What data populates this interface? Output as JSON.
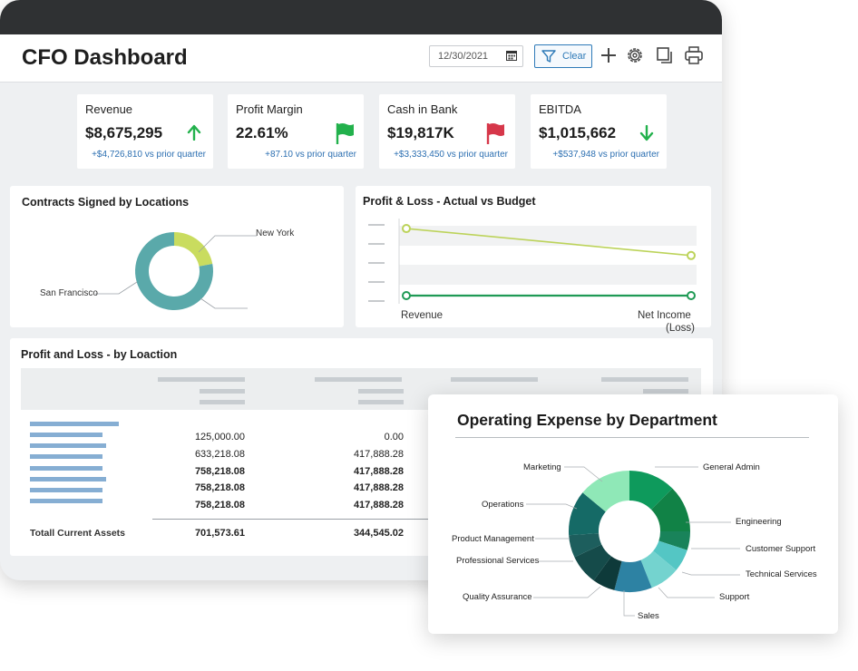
{
  "header": {
    "title": "CFO Dashboard",
    "date": "12/30/2021",
    "clear_label": "Clear"
  },
  "kpis": [
    {
      "label": "Revenue",
      "value": "$8,675,295",
      "delta": "+$4,726,810 vs prior quarter",
      "indicator": "arrow-up",
      "color": "#22b14c"
    },
    {
      "label": "Profit Margin",
      "value": "22.61%",
      "delta": "+87.10 vs prior quarter",
      "indicator": "flag",
      "color": "#22b14c"
    },
    {
      "label": "Cash in Bank",
      "value": "$19,817K",
      "delta": "+$3,333,450 vs prior quarter",
      "indicator": "flag",
      "color": "#d6374a"
    },
    {
      "label": "EBITDA",
      "value": "$1,015,662",
      "delta": "+$537,948 vs prior quarter",
      "indicator": "arrow-down",
      "color": "#22b14c"
    }
  ],
  "contracts": {
    "title": "Contracts Signed by Locations",
    "chart_data": {
      "type": "pie",
      "series": [
        {
          "name": "New York",
          "value": 0.22,
          "color": "#c9dc5f"
        },
        {
          "name": "San Francisco",
          "value": 0.78,
          "color": "#5aa9aa"
        }
      ]
    }
  },
  "pnl_chart": {
    "title": "Profit & Loss - Actual vs Budget",
    "chart_data": {
      "type": "line",
      "categories": [
        "Revenue",
        "Net Income (Loss)"
      ],
      "series": [
        {
          "values": [
            0.87,
            0.52
          ],
          "color": "#bcd35a"
        },
        {
          "values": [
            0.0,
            0.0
          ],
          "color": "#1f9a55"
        }
      ]
    },
    "x_labels": [
      "Revenue",
      "Net Income",
      "(Loss)"
    ]
  },
  "pnl_table": {
    "title": "Profit and Loss - by Loaction",
    "rows": [
      {
        "c1": "125,000.00",
        "c2": "0.00",
        "bold": false
      },
      {
        "c1": "633,218.08",
        "c2": "417,888.28",
        "bold": false
      },
      {
        "c1": "758,218.08",
        "c2": "417,888.28",
        "bold": true
      },
      {
        "c1": "758,218.08",
        "c2": "417,888.28",
        "bold": true
      },
      {
        "c1": "758,218.08",
        "c2": "417,888.28",
        "bold": true
      }
    ],
    "total_label": "Totall Current Assets",
    "total_c1": "701,573.61",
    "total_c2": "344,545.02"
  },
  "opex": {
    "title": "Operating Expense by Department",
    "chart_data": {
      "type": "pie",
      "series": [
        {
          "name": "General Admin",
          "value": 0.125,
          "color": "#0e9a5c"
        },
        {
          "name": "Engineering",
          "value": 0.125,
          "color": "#118246"
        },
        {
          "name": "Customer Support",
          "value": 0.05,
          "color": "#19835a"
        },
        {
          "name": "Technical Services",
          "value": 0.06,
          "color": "#54c6c4"
        },
        {
          "name": "Support",
          "value": 0.08,
          "color": "#74d3cf"
        },
        {
          "name": "Sales",
          "value": 0.1,
          "color": "#2d82a3"
        },
        {
          "name": "Quality Assurance",
          "value": 0.06,
          "color": "#0e3a3a"
        },
        {
          "name": "Professional Services",
          "value": 0.08,
          "color": "#154b4a"
        },
        {
          "name": "Product Management",
          "value": 0.06,
          "color": "#1d5e5d"
        },
        {
          "name": "Operations",
          "value": 0.12,
          "color": "#156a66"
        },
        {
          "name": "Marketing",
          "value": 0.14,
          "color": "#8fe8b7"
        }
      ]
    }
  }
}
